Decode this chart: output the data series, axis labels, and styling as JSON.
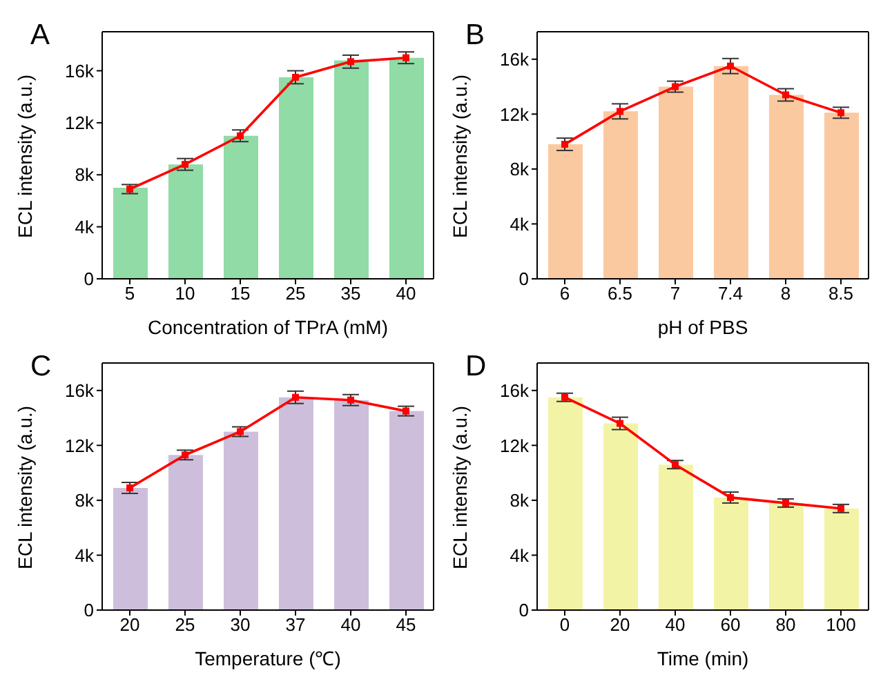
{
  "chart_data": [
    {
      "type": "bar",
      "title": "A",
      "categories": [
        "5",
        "10",
        "15",
        "25",
        "35",
        "40"
      ],
      "xlabel": "Concentration of TPrA (mM)",
      "ylabel": "ECL intensity (a.u.)",
      "ylim": [
        0,
        19000
      ],
      "yticks": [
        {
          "value": 0,
          "label": "0"
        },
        {
          "value": 4000,
          "label": "4k"
        },
        {
          "value": 8000,
          "label": "8k"
        },
        {
          "value": 12000,
          "label": "12k"
        },
        {
          "value": 16000,
          "label": "16k"
        }
      ],
      "marker": "square",
      "grid": false,
      "series": [
        {
          "color": "#90dba6",
          "values": [
            7000,
            8800,
            11000,
            15500,
            16800,
            17000
          ]
        },
        {
          "type": "line",
          "color": "#ff0000",
          "values": [
            6900,
            8800,
            11000,
            15500,
            16700,
            17000
          ],
          "errors": [
            350,
            450,
            450,
            500,
            500,
            450
          ]
        }
      ]
    },
    {
      "type": "bar",
      "title": "B",
      "categories": [
        "6",
        "6.5",
        "7",
        "7.4",
        "8",
        "8.5"
      ],
      "xlabel": "pH of PBS",
      "ylabel": "ECL intensity (a.u.)",
      "ylim": [
        0,
        18000
      ],
      "yticks": [
        {
          "value": 0,
          "label": "0"
        },
        {
          "value": 4000,
          "label": "4k"
        },
        {
          "value": 8000,
          "label": "8k"
        },
        {
          "value": 12000,
          "label": "12k"
        },
        {
          "value": 16000,
          "label": "16k"
        }
      ],
      "marker": "square",
      "grid": false,
      "series": [
        {
          "color": "#fbc9a0",
          "values": [
            9800,
            12200,
            14000,
            15500,
            13400,
            12100
          ]
        },
        {
          "type": "line",
          "color": "#ff0000",
          "values": [
            9800,
            12200,
            14000,
            15500,
            13400,
            12100
          ],
          "errors": [
            450,
            550,
            400,
            550,
            450,
            400
          ]
        }
      ]
    },
    {
      "type": "bar",
      "title": "C",
      "categories": [
        "20",
        "25",
        "30",
        "37",
        "40",
        "45"
      ],
      "xlabel": "Temperature (℃)",
      "ylabel": "ECL intensity (a.u.)",
      "ylim": [
        0,
        18000
      ],
      "yticks": [
        {
          "value": 0,
          "label": "0"
        },
        {
          "value": 4000,
          "label": "4k"
        },
        {
          "value": 8000,
          "label": "8k"
        },
        {
          "value": 12000,
          "label": "12k"
        },
        {
          "value": 16000,
          "label": "16k"
        }
      ],
      "marker": "square",
      "grid": false,
      "series": [
        {
          "color": "#cdbfdc",
          "values": [
            8900,
            11300,
            13000,
            15500,
            15300,
            14500
          ]
        },
        {
          "type": "line",
          "color": "#ff0000",
          "values": [
            8900,
            11300,
            13000,
            15500,
            15300,
            14500
          ],
          "errors": [
            400,
            350,
            350,
            450,
            400,
            350
          ]
        }
      ]
    },
    {
      "type": "bar",
      "title": "D",
      "categories": [
        "0",
        "20",
        "40",
        "60",
        "80",
        "100"
      ],
      "xlabel": "Time (min)",
      "ylabel": "ECL intensity (a.u.)",
      "ylim": [
        0,
        18000
      ],
      "yticks": [
        {
          "value": 0,
          "label": "0"
        },
        {
          "value": 4000,
          "label": "4k"
        },
        {
          "value": 8000,
          "label": "8k"
        },
        {
          "value": 12000,
          "label": "12k"
        },
        {
          "value": 16000,
          "label": "16k"
        }
      ],
      "marker": "square",
      "grid": false,
      "series": [
        {
          "color": "#f3f3a6",
          "values": [
            15500,
            13600,
            10600,
            8200,
            7800,
            7400
          ]
        },
        {
          "type": "line",
          "color": "#ff0000",
          "values": [
            15500,
            13600,
            10600,
            8200,
            7800,
            7400
          ],
          "errors": [
            300,
            450,
            300,
            400,
            300,
            300
          ]
        }
      ]
    }
  ]
}
